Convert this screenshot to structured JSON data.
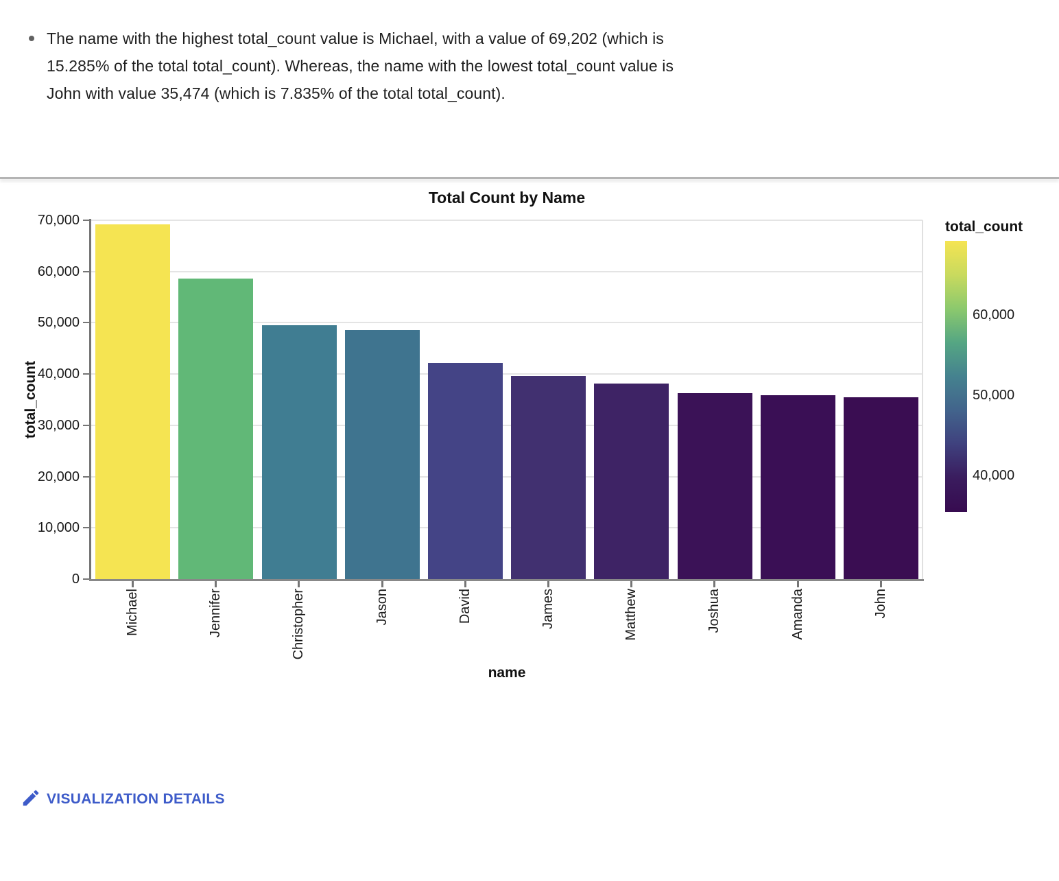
{
  "insight": {
    "text": "The name with the highest total_count value is Michael, with a value of 69,202 (which is 15.285% of the total total_count). Whereas, the name with the lowest total_count value is John with value 35,474 (which is 7.835% of the total total_count)."
  },
  "chart_data": {
    "type": "bar",
    "title": "Total Count by Name",
    "xlabel": "name",
    "ylabel": "total_count",
    "ylim": [
      0,
      70000
    ],
    "y_ticks": [
      0,
      10000,
      20000,
      30000,
      40000,
      50000,
      60000,
      70000
    ],
    "grid": true,
    "categories": [
      "Michael",
      "Jennifer",
      "Christopher",
      "Jason",
      "David",
      "James",
      "Matthew",
      "Joshua",
      "Amanda",
      "John"
    ],
    "values": [
      69202,
      58600,
      49550,
      48600,
      42150,
      39600,
      38150,
      36270,
      35870,
      35474
    ],
    "bar_colors": [
      "#F5E452",
      "#61B877",
      "#407D92",
      "#3F748F",
      "#444486",
      "#413070",
      "#3E2365",
      "#3B1257",
      "#3A0F55",
      "#3A0D52"
    ],
    "legend": {
      "title": "total_count",
      "position": "right",
      "domain": [
        35474,
        69202
      ],
      "tick_values": [
        60000,
        50000,
        40000
      ],
      "gradient_top_to_bottom": [
        "#F5E452",
        "#C9DA5E",
        "#8CC96D",
        "#55A683",
        "#45828F",
        "#42648C",
        "#3F417E",
        "#3A1C5E",
        "#370B50"
      ]
    }
  },
  "footer": {
    "details_label": "VISUALIZATION DETAILS",
    "accent_color": "#3D5BC9"
  }
}
